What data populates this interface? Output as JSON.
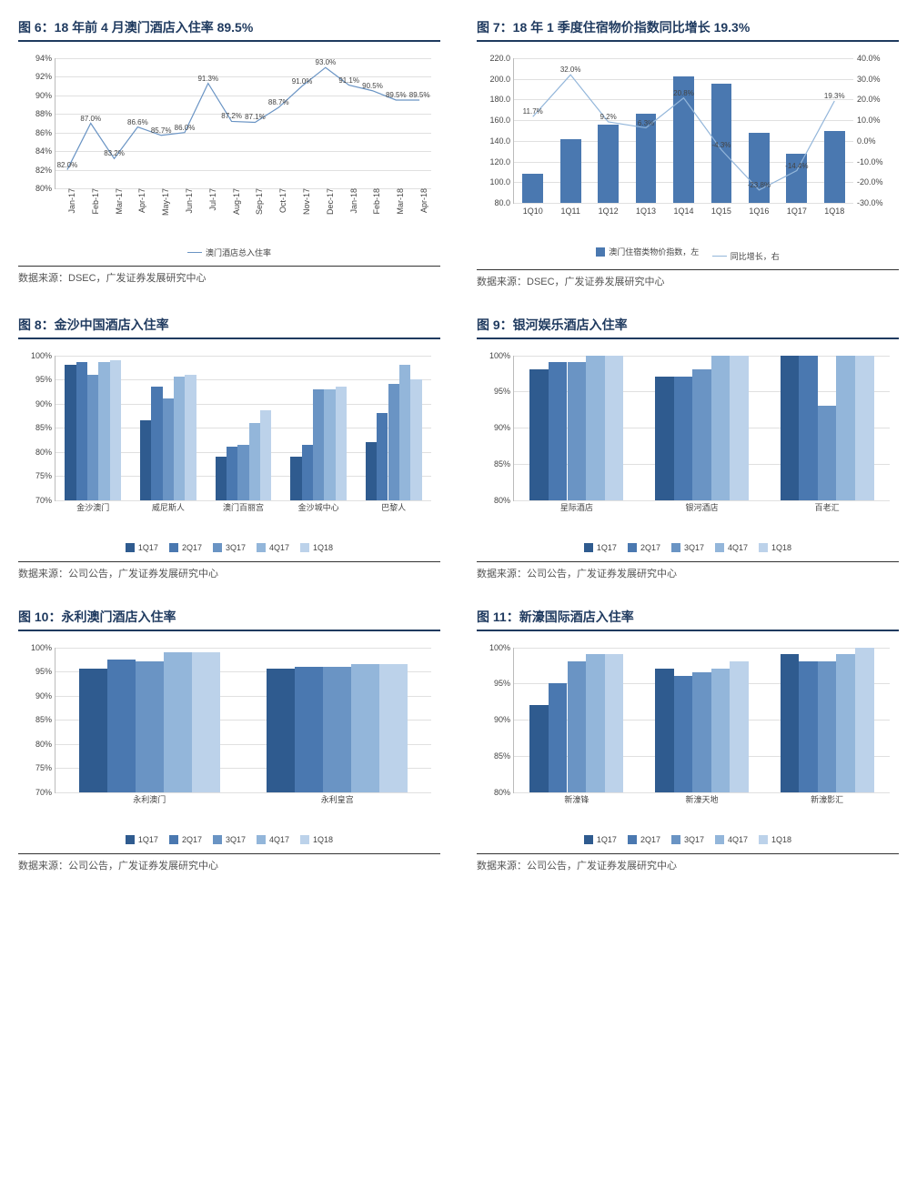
{
  "colors": {
    "title": "#1f3a5f",
    "grid": "#e0e0e0",
    "axis": "#bbbbbb",
    "text": "#444444",
    "series5": [
      "#2f5b8f",
      "#4a78b0",
      "#6a94c4",
      "#93b6da",
      "#bcd2ea"
    ],
    "bar7": "#4a78b0",
    "line6": "#6a94c4",
    "line7": "#93b6da"
  },
  "chart6": {
    "title": "图 6：18 年前 4 月澳门酒店入住率 89.5%",
    "type": "line",
    "ymin": 80,
    "ymax": 94,
    "ystep": 2,
    "ysuffix": "%",
    "x": [
      "Jan-17",
      "Feb-17",
      "Mar-17",
      "Apr-17",
      "May-17",
      "Jun-17",
      "Jul-17",
      "Aug-17",
      "Sep-17",
      "Oct-17",
      "Nov-17",
      "Dec-17",
      "Jan-18",
      "Feb-18",
      "Mar-18",
      "Apr-18"
    ],
    "y": [
      82.0,
      87.0,
      83.2,
      86.6,
      85.7,
      86.0,
      91.3,
      87.2,
      87.1,
      88.7,
      91.0,
      93.0,
      91.1,
      90.5,
      89.5,
      89.5
    ],
    "labels": [
      "82.0%",
      "87.0%",
      "83.2%",
      "86.6%",
      "85.7%",
      "86.0%",
      "91.3%",
      "87.2%",
      "87.1%",
      "88.7%",
      "91.0%",
      "93.0%",
      "91.1%",
      "90.5%",
      "89.5%",
      "89.5%"
    ],
    "legend": "澳门酒店总入住率",
    "source": "数据来源：DSEC，广发证券发展研究中心",
    "rotate_x": true
  },
  "chart7": {
    "title": "图 7：18 年 1 季度住宿物价指数同比增长 19.3%",
    "type": "bar+line",
    "x": [
      "1Q10",
      "1Q11",
      "1Q12",
      "1Q13",
      "1Q14",
      "1Q15",
      "1Q16",
      "1Q17",
      "1Q18"
    ],
    "bar": [
      108,
      142,
      156,
      166,
      202,
      195,
      148,
      128,
      150
    ],
    "yl_min": 80,
    "yl_max": 220,
    "yl_step": 20,
    "yl_suffix": ".0",
    "line": [
      11.7,
      32.0,
      9.2,
      6.3,
      20.8,
      -4.3,
      -23.8,
      -14.4,
      19.3
    ],
    "line_labels": [
      "11.7%",
      "32.0%",
      "9.2%",
      "6.3%",
      "20.8%",
      "-4.3%",
      "-23.8%",
      "-14.4%",
      "19.3%"
    ],
    "yr_min": -30,
    "yr_max": 40,
    "yr_step": 10,
    "yr_suffix": ".0%",
    "legend_bar": "澳门住宿类物价指数，左",
    "legend_line": "同比增长，右",
    "source": "数据来源：DSEC，广发证券发展研究中心"
  },
  "grouped_legend": [
    "1Q17",
    "2Q17",
    "3Q17",
    "4Q17",
    "1Q18"
  ],
  "chart8": {
    "title": "图 8：金沙中国酒店入住率",
    "ymin": 70,
    "ymax": 100,
    "ystep": 5,
    "ysuffix": "%",
    "groups": [
      "金沙澳门",
      "威尼斯人",
      "澳门百丽宫",
      "金沙城中心",
      "巴黎人"
    ],
    "series": [
      [
        98,
        86.5,
        79,
        79,
        82
      ],
      [
        98.5,
        93.5,
        81,
        81.5,
        88
      ],
      [
        96,
        91,
        81.5,
        93,
        94
      ],
      [
        98.5,
        95.5,
        86,
        93,
        98
      ],
      [
        99,
        96,
        88.5,
        93.5,
        95
      ]
    ],
    "source": "数据来源：公司公告，广发证券发展研究中心"
  },
  "chart9": {
    "title": "图 9：银河娱乐酒店入住率",
    "ymin": 80,
    "ymax": 100,
    "ystep": 5,
    "ysuffix": "%",
    "groups": [
      "星际酒店",
      "银河酒店",
      "百老汇"
    ],
    "series": [
      [
        98,
        97,
        100
      ],
      [
        99,
        97,
        100
      ],
      [
        99,
        98,
        93
      ],
      [
        100,
        100,
        100
      ],
      [
        100,
        100,
        100
      ]
    ],
    "source": "数据来源：公司公告，广发证券发展研究中心"
  },
  "chart10": {
    "title": "图 10：永利澳门酒店入住率",
    "ymin": 70,
    "ymax": 100,
    "ystep": 5,
    "ysuffix": "%",
    "groups": [
      "永利澳门",
      "永利皇宫"
    ],
    "series": [
      [
        95.5,
        95.5
      ],
      [
        97.5,
        96
      ],
      [
        97,
        96
      ],
      [
        99,
        96.5
      ],
      [
        99,
        96.5
      ]
    ],
    "source": "数据来源：公司公告，广发证券发展研究中心"
  },
  "chart11": {
    "title": "图 11：新濠国际酒店入住率",
    "ymin": 80,
    "ymax": 100,
    "ystep": 5,
    "ysuffix": "%",
    "groups": [
      "新濠锋",
      "新濠天地",
      "新濠影汇"
    ],
    "series": [
      [
        92,
        97,
        99
      ],
      [
        95,
        96,
        98
      ],
      [
        98,
        96.5,
        98
      ],
      [
        99,
        97,
        99
      ],
      [
        99,
        98,
        100
      ]
    ],
    "source": "数据来源：公司公告，广发证券发展研究中心"
  }
}
